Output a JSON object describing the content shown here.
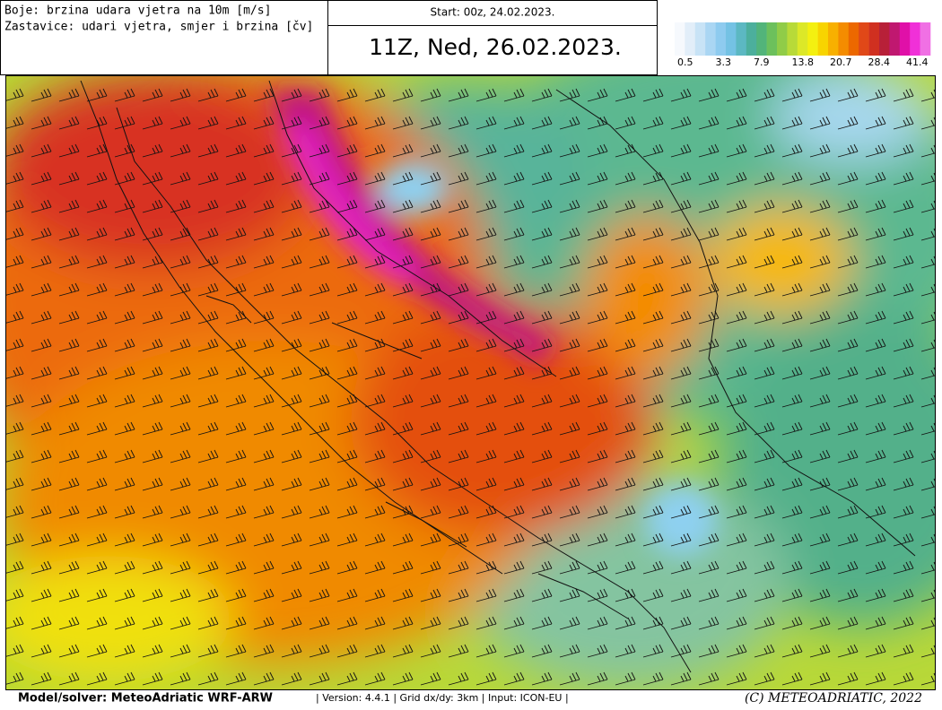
{
  "header": {
    "legend_colors": "Boje: brzina udara vjetra na 10m [m/s]",
    "legend_barbs": "Zastavice: udari vjetra, smjer i brzina [čv]",
    "start": "Start: 00z, 24.02.2023.",
    "valid": "11Z, Ned, 26.02.2023."
  },
  "colorbar": {
    "colors": [
      "#f6f9fd",
      "#e2eef9",
      "#c8e3f6",
      "#aad6f3",
      "#8ecbef",
      "#74c2e4",
      "#5cb8c2",
      "#4caf9c",
      "#52b47a",
      "#6cc05c",
      "#90cc48",
      "#b8da38",
      "#dce828",
      "#f4f010",
      "#f8d400",
      "#f8b000",
      "#f48c00",
      "#ec6800",
      "#e04818",
      "#d03020",
      "#b82038",
      "#c01870",
      "#e010a8",
      "#f030d8",
      "#f070e4"
    ],
    "labels": [
      "0.5",
      "3.3",
      "7.9",
      "13.8",
      "20.7",
      "28.4",
      "41.4"
    ]
  },
  "footer": {
    "model": "Model/solver: MeteoAdriatic WRF-ARW",
    "info": "| Version: 4.4.1 | Grid dx/dy: 3km | Input: ICON-EU |",
    "copyright": "(C) METEOADRIATIC, 2022"
  }
}
